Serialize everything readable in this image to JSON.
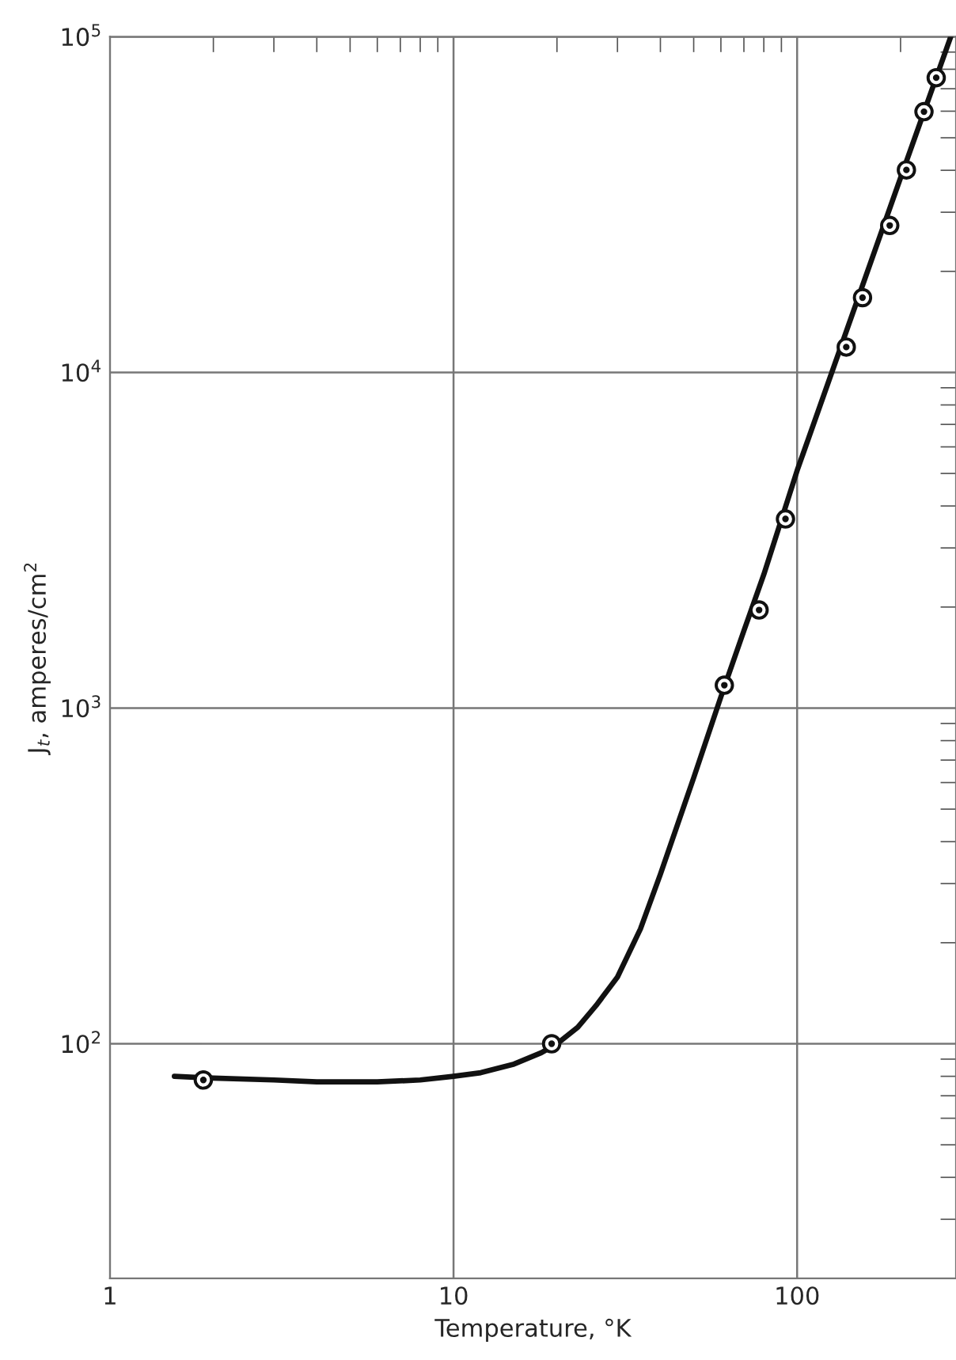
{
  "chart_data": {
    "type": "line",
    "xlabel": "Temperature, °K",
    "ylabel": "J$_{t}$, amperes/cm$^{2}$",
    "log": "xy",
    "grid": true,
    "legend": false,
    "xlim": [
      1,
      290
    ],
    "ylim": [
      20,
      100000
    ],
    "xticks": [
      1,
      10,
      100
    ],
    "yticks": [
      {
        "value": 100,
        "label": "10$^{2}$"
      },
      {
        "value": 1000,
        "label": "10$^{3}$"
      },
      {
        "value": 10000,
        "label": "10$^{4}$"
      },
      {
        "value": 100000,
        "label": "10$^{5}$"
      }
    ],
    "series": [
      {
        "color": "#111111",
        "marker": "none",
        "line_style": "solid",
        "x": [
          1.54,
          2,
          3,
          4,
          6,
          8,
          10,
          12,
          15,
          18,
          20,
          23,
          26,
          30,
          35,
          40,
          50,
          60,
          70,
          80,
          100,
          150,
          200,
          280
        ],
        "values": [
          80,
          79,
          78,
          77,
          77,
          78,
          80,
          82,
          87,
          94,
          100,
          112,
          130,
          158,
          220,
          320,
          620,
          1080,
          1700,
          2500,
          5100,
          16500,
          38000,
          100000
        ]
      },
      {
        "type": "scatter",
        "color": "#111111",
        "marker": "circle",
        "x": [
          1.87,
          19.3,
          61.4,
          77.5,
          92.5,
          139,
          155,
          186,
          208,
          234,
          254
        ],
        "values": [
          78,
          100,
          1170,
          1960,
          3660,
          11900,
          16700,
          27400,
          40100,
          59800,
          75500
        ]
      }
    ]
  }
}
